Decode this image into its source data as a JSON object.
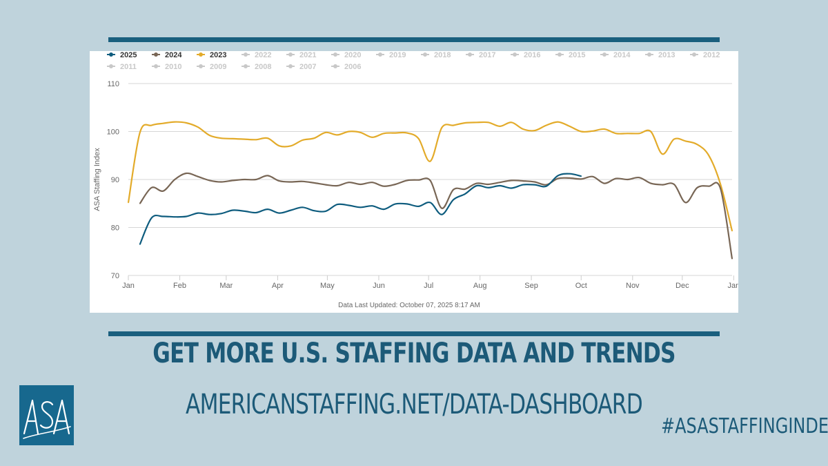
{
  "chart_data": {
    "type": "line",
    "ylabel": "ASA Staffing Index",
    "xlabel": "",
    "ylim": [
      70,
      110
    ],
    "yticks": [
      70,
      80,
      90,
      100,
      110
    ],
    "x_domain": [
      0,
      52
    ],
    "x_ticks": [
      {
        "label": "Jan",
        "week": 0
      },
      {
        "label": "Feb",
        "week": 4.43
      },
      {
        "label": "Mar",
        "week": 8.43
      },
      {
        "label": "Apr",
        "week": 12.86
      },
      {
        "label": "May",
        "week": 17.14
      },
      {
        "label": "Jun",
        "week": 21.57
      },
      {
        "label": "Jul",
        "week": 25.86
      },
      {
        "label": "Aug",
        "week": 30.29
      },
      {
        "label": "Sep",
        "week": 34.71
      },
      {
        "label": "Oct",
        "week": 39
      },
      {
        "label": "Nov",
        "week": 43.43
      },
      {
        "label": "Dec",
        "week": 47.71
      },
      {
        "label": "Jan",
        "week": 52.14
      }
    ],
    "grid": true,
    "legend_position": "top",
    "series": [
      {
        "name": "2025",
        "color": "#0e5c7e",
        "active": true,
        "x": [
          1,
          2,
          3,
          4,
          5,
          6,
          7,
          8,
          9,
          10,
          11,
          12,
          13,
          14,
          15,
          16,
          17,
          18,
          19,
          20,
          21,
          22,
          23,
          24,
          25,
          26,
          27,
          28,
          29,
          30,
          31,
          32,
          33,
          34,
          35,
          36,
          37,
          38,
          39
        ],
        "values": [
          76.5,
          82.0,
          82.3,
          82.2,
          82.3,
          83.0,
          82.7,
          82.9,
          83.6,
          83.4,
          83.1,
          83.8,
          83.0,
          83.6,
          84.2,
          83.5,
          83.4,
          84.8,
          84.6,
          84.2,
          84.5,
          83.8,
          84.9,
          84.9,
          84.4,
          85.2,
          82.7,
          85.8,
          87.0,
          88.7,
          88.3,
          88.7,
          88.2,
          88.9,
          88.9,
          88.6,
          90.8,
          91.2,
          90.7
        ]
      },
      {
        "name": "2024",
        "color": "#786655",
        "active": true,
        "x": [
          1,
          2,
          3,
          4,
          5,
          6,
          7,
          8,
          9,
          10,
          11,
          12,
          13,
          14,
          15,
          16,
          17,
          18,
          19,
          20,
          21,
          22,
          23,
          24,
          25,
          26,
          27,
          28,
          29,
          30,
          31,
          32,
          33,
          34,
          35,
          36,
          37,
          38,
          39,
          40,
          41,
          42,
          43,
          44,
          45,
          46,
          47,
          48,
          49,
          50,
          51,
          52
        ],
        "values": [
          85.0,
          88.3,
          87.6,
          90.0,
          91.3,
          90.6,
          89.8,
          89.5,
          89.8,
          90.0,
          90.0,
          90.8,
          89.7,
          89.5,
          89.6,
          89.3,
          88.9,
          88.7,
          89.4,
          89.0,
          89.4,
          88.6,
          89.0,
          89.8,
          89.9,
          89.8,
          84.0,
          87.9,
          88.0,
          89.2,
          89.0,
          89.4,
          89.8,
          89.7,
          89.5,
          88.9,
          90.2,
          90.3,
          90.1,
          90.6,
          89.2,
          90.2,
          90.0,
          90.4,
          89.2,
          88.9,
          89.0,
          85.2,
          88.3,
          88.6,
          88.1,
          73.5
        ]
      },
      {
        "name": "2023",
        "color": "#e3ab2a",
        "active": true,
        "x": [
          0,
          1,
          2,
          3,
          4,
          5,
          6,
          7,
          8,
          9,
          10,
          11,
          12,
          13,
          14,
          15,
          16,
          17,
          18,
          19,
          20,
          21,
          22,
          23,
          24,
          25,
          26,
          27,
          28,
          29,
          30,
          31,
          32,
          33,
          34,
          35,
          36,
          37,
          38,
          39,
          40,
          41,
          42,
          43,
          44,
          45,
          46,
          47,
          48,
          49,
          50,
          51,
          52
        ],
        "values": [
          85.2,
          99.8,
          101.3,
          101.7,
          102.0,
          101.8,
          100.9,
          99.2,
          98.6,
          98.5,
          98.4,
          98.3,
          98.6,
          97.0,
          97.0,
          98.2,
          98.6,
          99.8,
          99.3,
          100.0,
          99.8,
          98.8,
          99.6,
          99.7,
          99.7,
          98.5,
          93.8,
          100.8,
          101.3,
          101.8,
          101.9,
          101.9,
          101.1,
          101.9,
          100.5,
          100.2,
          101.3,
          102.0,
          101.1,
          100.0,
          100.1,
          100.5,
          99.6,
          99.6,
          99.6,
          100.0,
          95.3,
          98.4,
          98.0,
          97.3,
          95.0,
          89.0,
          79.3
        ]
      },
      {
        "name": "2022",
        "color": "#b8b8b8",
        "active": false
      },
      {
        "name": "2021",
        "color": "#b8b8b8",
        "active": false
      },
      {
        "name": "2020",
        "color": "#b8b8b8",
        "active": false
      },
      {
        "name": "2019",
        "color": "#b8b8b8",
        "active": false
      },
      {
        "name": "2018",
        "color": "#b8b8b8",
        "active": false
      },
      {
        "name": "2017",
        "color": "#b8b8b8",
        "active": false
      },
      {
        "name": "2016",
        "color": "#b8b8b8",
        "active": false
      },
      {
        "name": "2015",
        "color": "#b8b8b8",
        "active": false
      },
      {
        "name": "2014",
        "color": "#b8b8b8",
        "active": false
      },
      {
        "name": "2013",
        "color": "#b8b8b8",
        "active": false
      },
      {
        "name": "2012",
        "color": "#b8b8b8",
        "active": false
      },
      {
        "name": "2011",
        "color": "#b8b8b8",
        "active": false
      },
      {
        "name": "2010",
        "color": "#b8b8b8",
        "active": false
      },
      {
        "name": "2009",
        "color": "#b8b8b8",
        "active": false
      },
      {
        "name": "2008",
        "color": "#b8b8b8",
        "active": false
      },
      {
        "name": "2007",
        "color": "#b8b8b8",
        "active": false
      },
      {
        "name": "2006",
        "color": "#b8b8b8",
        "active": false
      }
    ],
    "footnote": "Data Last Updated: October 07, 2025 8:17 AM"
  },
  "banner": {
    "headline": "GET MORE U.S. STAFFING DATA AND TRENDS",
    "url": "AMERICANSTAFFING.NET/DATA-DASHBOARD",
    "hashtag": "#ASASTAFFINGINDEX"
  },
  "logo": {
    "text": "ASA",
    "icon": "asa-logo-icon"
  },
  "colors": {
    "background": "#bfd3dc",
    "brand": "#1c5a78",
    "rule": "#1a5f7e",
    "logo_bg": "#17688e"
  }
}
